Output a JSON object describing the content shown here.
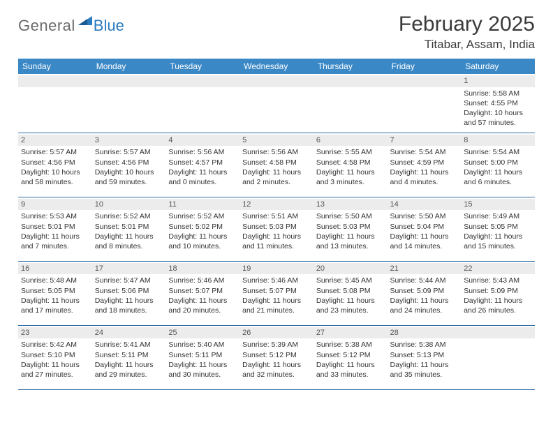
{
  "logo": {
    "text_gray": "General",
    "text_blue": "Blue"
  },
  "title": "February 2025",
  "location": "Titabar, Assam, India",
  "colors": {
    "header_bg": "#3b88c6",
    "header_text": "#ffffff",
    "row_divider": "#2d6aa3",
    "daynum_bg": "#ececec",
    "body_text": "#333333",
    "logo_gray": "#6b6b6b",
    "logo_blue": "#2a7bbf"
  },
  "weekdays": [
    "Sunday",
    "Monday",
    "Tuesday",
    "Wednesday",
    "Thursday",
    "Friday",
    "Saturday"
  ],
  "first_weekday_index": 6,
  "days": [
    {
      "n": 1,
      "sunrise": "5:58 AM",
      "sunset": "4:55 PM",
      "daylight": "10 hours and 57 minutes."
    },
    {
      "n": 2,
      "sunrise": "5:57 AM",
      "sunset": "4:56 PM",
      "daylight": "10 hours and 58 minutes."
    },
    {
      "n": 3,
      "sunrise": "5:57 AM",
      "sunset": "4:56 PM",
      "daylight": "10 hours and 59 minutes."
    },
    {
      "n": 4,
      "sunrise": "5:56 AM",
      "sunset": "4:57 PM",
      "daylight": "11 hours and 0 minutes."
    },
    {
      "n": 5,
      "sunrise": "5:56 AM",
      "sunset": "4:58 PM",
      "daylight": "11 hours and 2 minutes."
    },
    {
      "n": 6,
      "sunrise": "5:55 AM",
      "sunset": "4:58 PM",
      "daylight": "11 hours and 3 minutes."
    },
    {
      "n": 7,
      "sunrise": "5:54 AM",
      "sunset": "4:59 PM",
      "daylight": "11 hours and 4 minutes."
    },
    {
      "n": 8,
      "sunrise": "5:54 AM",
      "sunset": "5:00 PM",
      "daylight": "11 hours and 6 minutes."
    },
    {
      "n": 9,
      "sunrise": "5:53 AM",
      "sunset": "5:01 PM",
      "daylight": "11 hours and 7 minutes."
    },
    {
      "n": 10,
      "sunrise": "5:52 AM",
      "sunset": "5:01 PM",
      "daylight": "11 hours and 8 minutes."
    },
    {
      "n": 11,
      "sunrise": "5:52 AM",
      "sunset": "5:02 PM",
      "daylight": "11 hours and 10 minutes."
    },
    {
      "n": 12,
      "sunrise": "5:51 AM",
      "sunset": "5:03 PM",
      "daylight": "11 hours and 11 minutes."
    },
    {
      "n": 13,
      "sunrise": "5:50 AM",
      "sunset": "5:03 PM",
      "daylight": "11 hours and 13 minutes."
    },
    {
      "n": 14,
      "sunrise": "5:50 AM",
      "sunset": "5:04 PM",
      "daylight": "11 hours and 14 minutes."
    },
    {
      "n": 15,
      "sunrise": "5:49 AM",
      "sunset": "5:05 PM",
      "daylight": "11 hours and 15 minutes."
    },
    {
      "n": 16,
      "sunrise": "5:48 AM",
      "sunset": "5:05 PM",
      "daylight": "11 hours and 17 minutes."
    },
    {
      "n": 17,
      "sunrise": "5:47 AM",
      "sunset": "5:06 PM",
      "daylight": "11 hours and 18 minutes."
    },
    {
      "n": 18,
      "sunrise": "5:46 AM",
      "sunset": "5:07 PM",
      "daylight": "11 hours and 20 minutes."
    },
    {
      "n": 19,
      "sunrise": "5:46 AM",
      "sunset": "5:07 PM",
      "daylight": "11 hours and 21 minutes."
    },
    {
      "n": 20,
      "sunrise": "5:45 AM",
      "sunset": "5:08 PM",
      "daylight": "11 hours and 23 minutes."
    },
    {
      "n": 21,
      "sunrise": "5:44 AM",
      "sunset": "5:09 PM",
      "daylight": "11 hours and 24 minutes."
    },
    {
      "n": 22,
      "sunrise": "5:43 AM",
      "sunset": "5:09 PM",
      "daylight": "11 hours and 26 minutes."
    },
    {
      "n": 23,
      "sunrise": "5:42 AM",
      "sunset": "5:10 PM",
      "daylight": "11 hours and 27 minutes."
    },
    {
      "n": 24,
      "sunrise": "5:41 AM",
      "sunset": "5:11 PM",
      "daylight": "11 hours and 29 minutes."
    },
    {
      "n": 25,
      "sunrise": "5:40 AM",
      "sunset": "5:11 PM",
      "daylight": "11 hours and 30 minutes."
    },
    {
      "n": 26,
      "sunrise": "5:39 AM",
      "sunset": "5:12 PM",
      "daylight": "11 hours and 32 minutes."
    },
    {
      "n": 27,
      "sunrise": "5:38 AM",
      "sunset": "5:12 PM",
      "daylight": "11 hours and 33 minutes."
    },
    {
      "n": 28,
      "sunrise": "5:38 AM",
      "sunset": "5:13 PM",
      "daylight": "11 hours and 35 minutes."
    }
  ],
  "labels": {
    "sunrise_prefix": "Sunrise: ",
    "sunset_prefix": "Sunset: ",
    "daylight_prefix": "Daylight: "
  }
}
